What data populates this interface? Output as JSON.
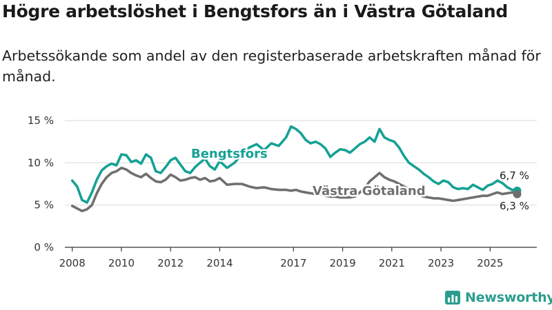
{
  "header": {
    "title": "Högre arbetslöshet i Bengtsfors än i Västra Götaland",
    "subtitle": "Arbetssökande som andel av den registerbaserade arbetskraften månad för månad."
  },
  "brand": {
    "name": "Newsworthy",
    "color": "#2a9d8f"
  },
  "chart_data": {
    "type": "line",
    "title": "Högre arbetslöshet i Bengtsfors än i Västra Götaland",
    "ylabel": "",
    "xlabel": "",
    "ylim": [
      0,
      15
    ],
    "xlim": [
      2007.7,
      2026.9
    ],
    "yticks": [
      0,
      5,
      10,
      15
    ],
    "ytick_labels": [
      "0 %",
      "5 %",
      "10 %",
      "15 %"
    ],
    "xticks": [
      2008,
      2010,
      2012,
      2014,
      2017,
      2019,
      2021,
      2023,
      2025
    ],
    "xtick_labels": [
      "2008",
      "2010",
      "2012",
      "2014",
      "2017",
      "2019",
      "2021",
      "2023",
      "2025"
    ],
    "grid": true,
    "series": [
      {
        "name": "Bengtsfors",
        "color": "#15a195",
        "label": "Bengtsfors",
        "end_label": "6,7 %",
        "end_value": 6.7,
        "x": [
          2008.0,
          2008.2,
          2008.4,
          2008.6,
          2008.8,
          2009.0,
          2009.2,
          2009.4,
          2009.6,
          2009.8,
          2010.0,
          2010.2,
          2010.4,
          2010.6,
          2010.8,
          2011.0,
          2011.2,
          2011.4,
          2011.6,
          2011.8,
          2012.0,
          2012.2,
          2012.4,
          2012.6,
          2012.8,
          2013.0,
          2013.2,
          2013.4,
          2013.6,
          2013.8,
          2014.0,
          2014.3,
          2014.6,
          2014.9,
          2015.2,
          2015.5,
          2015.8,
          2016.1,
          2016.4,
          2016.7,
          2016.9,
          2017.1,
          2017.3,
          2017.5,
          2017.7,
          2017.9,
          2018.1,
          2018.3,
          2018.5,
          2018.7,
          2018.9,
          2019.1,
          2019.3,
          2019.5,
          2019.7,
          2019.9,
          2020.1,
          2020.3,
          2020.5,
          2020.7,
          2020.9,
          2021.1,
          2021.3,
          2021.5,
          2021.7,
          2021.9,
          2022.1,
          2022.3,
          2022.5,
          2022.7,
          2022.9,
          2023.1,
          2023.3,
          2023.5,
          2023.7,
          2023.9,
          2024.1,
          2024.3,
          2024.5,
          2024.7,
          2024.9,
          2025.1,
          2025.3,
          2025.5,
          2025.7,
          2025.9,
          2026.1
        ],
        "values": [
          7.9,
          7.2,
          5.6,
          5.3,
          6.5,
          8.0,
          9.1,
          9.6,
          9.9,
          9.7,
          11.0,
          10.9,
          10.1,
          10.3,
          9.9,
          11.0,
          10.6,
          9.0,
          8.8,
          9.5,
          10.3,
          10.6,
          9.8,
          9.0,
          8.8,
          9.5,
          10.0,
          10.5,
          9.6,
          9.2,
          10.2,
          9.4,
          10.0,
          11.0,
          11.8,
          12.2,
          11.5,
          12.3,
          12.0,
          13.0,
          14.3,
          14.0,
          13.5,
          12.7,
          12.3,
          12.5,
          12.2,
          11.7,
          10.7,
          11.2,
          11.6,
          11.5,
          11.2,
          11.7,
          12.2,
          12.5,
          13.0,
          12.5,
          14.0,
          13.0,
          12.7,
          12.5,
          11.8,
          10.8,
          10.0,
          9.6,
          9.2,
          8.7,
          8.3,
          7.8,
          7.5,
          7.9,
          7.7,
          7.1,
          6.9,
          7.0,
          6.9,
          7.4,
          7.1,
          6.8,
          7.3,
          7.5,
          7.9,
          7.6,
          7.1,
          6.8,
          6.7
        ]
      },
      {
        "name": "Västra Götaland",
        "color": "#6f6f6f",
        "label": "Västra Götaland",
        "end_label": "6,3 %",
        "end_value": 6.3,
        "x": [
          2008.0,
          2008.2,
          2008.4,
          2008.6,
          2008.8,
          2009.0,
          2009.2,
          2009.4,
          2009.6,
          2009.8,
          2010.0,
          2010.2,
          2010.4,
          2010.6,
          2010.8,
          2011.0,
          2011.2,
          2011.4,
          2011.6,
          2011.8,
          2012.0,
          2012.2,
          2012.4,
          2012.6,
          2012.8,
          2013.0,
          2013.2,
          2013.4,
          2013.6,
          2013.8,
          2014.0,
          2014.3,
          2014.6,
          2014.9,
          2015.2,
          2015.5,
          2015.8,
          2016.1,
          2016.4,
          2016.7,
          2016.9,
          2017.1,
          2017.3,
          2017.5,
          2017.7,
          2017.9,
          2018.1,
          2018.3,
          2018.5,
          2018.7,
          2018.9,
          2019.1,
          2019.3,
          2019.5,
          2019.7,
          2019.9,
          2020.1,
          2020.3,
          2020.5,
          2020.7,
          2020.9,
          2021.1,
          2021.3,
          2021.5,
          2021.7,
          2021.9,
          2022.1,
          2022.3,
          2022.5,
          2022.7,
          2022.9,
          2023.1,
          2023.3,
          2023.5,
          2023.7,
          2023.9,
          2024.1,
          2024.3,
          2024.5,
          2024.7,
          2024.9,
          2025.1,
          2025.3,
          2025.5,
          2025.7,
          2025.9,
          2026.1
        ],
        "values": [
          4.9,
          4.6,
          4.3,
          4.5,
          5.0,
          6.4,
          7.5,
          8.3,
          8.8,
          9.0,
          9.4,
          9.2,
          8.8,
          8.5,
          8.3,
          8.7,
          8.2,
          7.8,
          7.7,
          8.0,
          8.6,
          8.3,
          7.9,
          8.0,
          8.2,
          8.3,
          8.0,
          8.2,
          7.8,
          7.9,
          8.2,
          7.4,
          7.5,
          7.5,
          7.2,
          7.0,
          7.1,
          6.9,
          6.8,
          6.8,
          6.7,
          6.8,
          6.6,
          6.5,
          6.4,
          6.3,
          6.3,
          6.1,
          6.0,
          6.0,
          5.9,
          5.9,
          5.9,
          6.0,
          6.5,
          7.0,
          7.8,
          8.3,
          8.8,
          8.3,
          8.0,
          7.8,
          7.5,
          7.2,
          6.9,
          6.5,
          6.2,
          6.0,
          5.9,
          5.8,
          5.8,
          5.7,
          5.6,
          5.5,
          5.6,
          5.7,
          5.8,
          5.9,
          6.0,
          6.1,
          6.1,
          6.3,
          6.5,
          6.3,
          6.4,
          6.5,
          6.3
        ]
      }
    ]
  }
}
